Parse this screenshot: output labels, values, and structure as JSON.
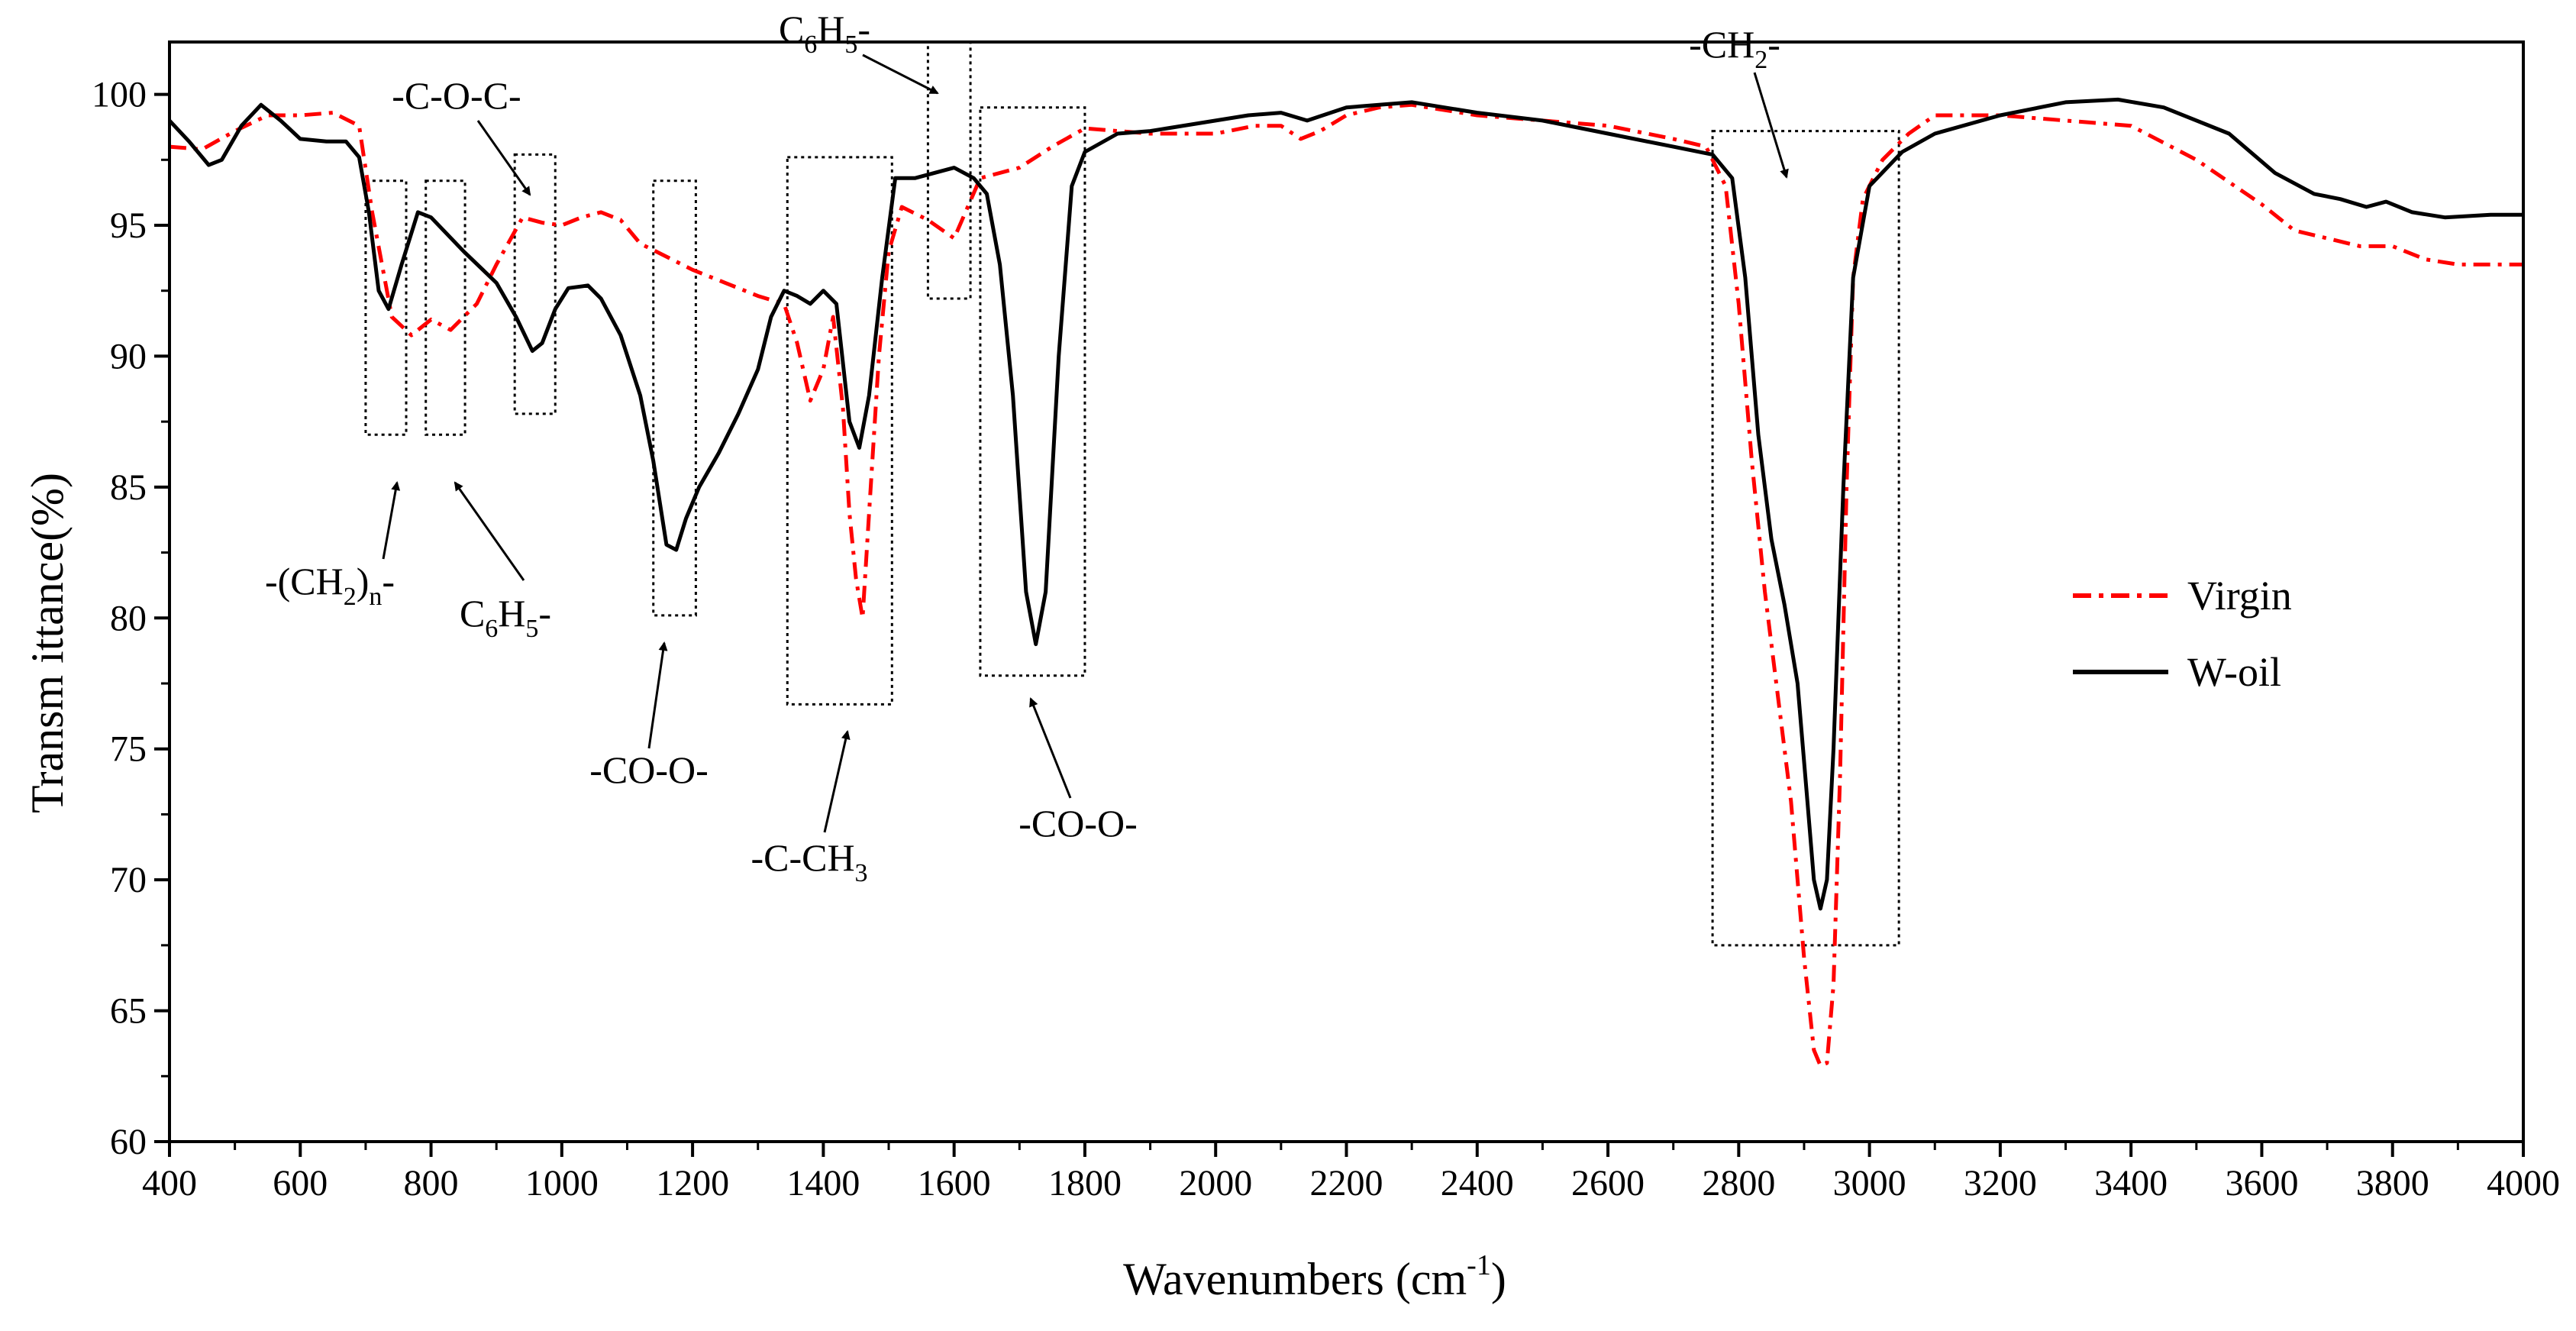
{
  "chart_data": {
    "type": "line",
    "title": "",
    "xlabel": "Wavenumbers (cm",
    "xlabel_sup": "-1",
    "xlabel_end": ")",
    "ylabel": "Transm ittance(%)",
    "xlim": [
      400,
      4000
    ],
    "ylim": [
      60,
      102
    ],
    "xticks": [
      400,
      600,
      800,
      1000,
      1200,
      1400,
      1600,
      1800,
      2000,
      2200,
      2400,
      2600,
      2800,
      3000,
      3200,
      3400,
      3600,
      3800,
      4000
    ],
    "yticks": [
      60,
      65,
      70,
      75,
      80,
      85,
      90,
      95,
      100
    ],
    "grid": false,
    "legend_position": "center-right",
    "series": [
      {
        "name": "Virgin",
        "color": "#ff0000",
        "style": "dash-dot",
        "points": [
          [
            400,
            98.0
          ],
          [
            450,
            97.9
          ],
          [
            500,
            98.6
          ],
          [
            550,
            99.2
          ],
          [
            600,
            99.2
          ],
          [
            650,
            99.3
          ],
          [
            690,
            98.8
          ],
          [
            710,
            95.5
          ],
          [
            740,
            91.5
          ],
          [
            770,
            90.8
          ],
          [
            800,
            91.4
          ],
          [
            830,
            91.0
          ],
          [
            870,
            92.0
          ],
          [
            900,
            93.5
          ],
          [
            940,
            95.3
          ],
          [
            970,
            95.1
          ],
          [
            1000,
            95.0
          ],
          [
            1030,
            95.3
          ],
          [
            1060,
            95.5
          ],
          [
            1090,
            95.2
          ],
          [
            1120,
            94.3
          ],
          [
            1160,
            93.8
          ],
          [
            1200,
            93.3
          ],
          [
            1250,
            92.8
          ],
          [
            1300,
            92.3
          ],
          [
            1340,
            92.0
          ],
          [
            1360,
            90.5
          ],
          [
            1380,
            88.3
          ],
          [
            1400,
            89.5
          ],
          [
            1415,
            91.5
          ],
          [
            1430,
            88.0
          ],
          [
            1440,
            84.0
          ],
          [
            1450,
            81.5
          ],
          [
            1460,
            80.0
          ],
          [
            1470,
            84.0
          ],
          [
            1485,
            90.0
          ],
          [
            1500,
            94.0
          ],
          [
            1520,
            95.7
          ],
          [
            1560,
            95.2
          ],
          [
            1600,
            94.5
          ],
          [
            1640,
            96.8
          ],
          [
            1700,
            97.2
          ],
          [
            1750,
            98.0
          ],
          [
            1800,
            98.7
          ],
          [
            1900,
            98.5
          ],
          [
            2000,
            98.5
          ],
          [
            2060,
            98.8
          ],
          [
            2100,
            98.8
          ],
          [
            2130,
            98.3
          ],
          [
            2160,
            98.6
          ],
          [
            2200,
            99.2
          ],
          [
            2250,
            99.5
          ],
          [
            2300,
            99.6
          ],
          [
            2400,
            99.2
          ],
          [
            2500,
            99.0
          ],
          [
            2600,
            98.8
          ],
          [
            2700,
            98.3
          ],
          [
            2750,
            98.0
          ],
          [
            2780,
            96.5
          ],
          [
            2800,
            92.0
          ],
          [
            2820,
            86.0
          ],
          [
            2840,
            81.0
          ],
          [
            2860,
            77.0
          ],
          [
            2880,
            73.0
          ],
          [
            2900,
            67.0
          ],
          [
            2915,
            63.5
          ],
          [
            2925,
            62.9
          ],
          [
            2935,
            63.0
          ],
          [
            2945,
            66.0
          ],
          [
            2955,
            74.0
          ],
          [
            2965,
            85.0
          ],
          [
            2975,
            93.0
          ],
          [
            2990,
            96.0
          ],
          [
            3020,
            97.5
          ],
          [
            3060,
            98.5
          ],
          [
            3100,
            99.2
          ],
          [
            3200,
            99.2
          ],
          [
            3300,
            99.0
          ],
          [
            3400,
            98.8
          ],
          [
            3500,
            97.5
          ],
          [
            3600,
            95.8
          ],
          [
            3650,
            94.8
          ],
          [
            3700,
            94.5
          ],
          [
            3750,
            94.2
          ],
          [
            3800,
            94.2
          ],
          [
            3850,
            93.7
          ],
          [
            3900,
            93.5
          ],
          [
            4000,
            93.5
          ]
        ]
      },
      {
        "name": "W-oil",
        "color": "#000000",
        "style": "solid",
        "points": [
          [
            400,
            99.0
          ],
          [
            430,
            98.2
          ],
          [
            460,
            97.3
          ],
          [
            480,
            97.5
          ],
          [
            510,
            98.8
          ],
          [
            540,
            99.6
          ],
          [
            570,
            99.0
          ],
          [
            600,
            98.3
          ],
          [
            640,
            98.2
          ],
          [
            670,
            98.2
          ],
          [
            690,
            97.6
          ],
          [
            705,
            95.5
          ],
          [
            720,
            92.5
          ],
          [
            735,
            91.8
          ],
          [
            755,
            93.5
          ],
          [
            780,
            95.5
          ],
          [
            800,
            95.3
          ],
          [
            850,
            94.0
          ],
          [
            900,
            92.8
          ],
          [
            930,
            91.5
          ],
          [
            955,
            90.2
          ],
          [
            970,
            90.5
          ],
          [
            990,
            91.8
          ],
          [
            1010,
            92.6
          ],
          [
            1040,
            92.7
          ],
          [
            1060,
            92.2
          ],
          [
            1090,
            90.8
          ],
          [
            1120,
            88.5
          ],
          [
            1140,
            86.0
          ],
          [
            1160,
            82.8
          ],
          [
            1175,
            82.6
          ],
          [
            1190,
            83.8
          ],
          [
            1210,
            85.0
          ],
          [
            1240,
            86.3
          ],
          [
            1270,
            87.8
          ],
          [
            1300,
            89.5
          ],
          [
            1320,
            91.5
          ],
          [
            1340,
            92.5
          ],
          [
            1360,
            92.3
          ],
          [
            1380,
            92.0
          ],
          [
            1400,
            92.5
          ],
          [
            1420,
            92.0
          ],
          [
            1440,
            87.5
          ],
          [
            1455,
            86.5
          ],
          [
            1470,
            88.5
          ],
          [
            1490,
            93.0
          ],
          [
            1510,
            96.8
          ],
          [
            1540,
            96.8
          ],
          [
            1570,
            97.0
          ],
          [
            1600,
            97.2
          ],
          [
            1630,
            96.8
          ],
          [
            1650,
            96.2
          ],
          [
            1670,
            93.5
          ],
          [
            1690,
            88.5
          ],
          [
            1710,
            81.0
          ],
          [
            1725,
            79.0
          ],
          [
            1740,
            81.0
          ],
          [
            1760,
            90.0
          ],
          [
            1780,
            96.5
          ],
          [
            1800,
            97.8
          ],
          [
            1850,
            98.5
          ],
          [
            1900,
            98.6
          ],
          [
            2000,
            99.0
          ],
          [
            2050,
            99.2
          ],
          [
            2100,
            99.3
          ],
          [
            2140,
            99.0
          ],
          [
            2200,
            99.5
          ],
          [
            2250,
            99.6
          ],
          [
            2300,
            99.7
          ],
          [
            2400,
            99.3
          ],
          [
            2500,
            99.0
          ],
          [
            2600,
            98.5
          ],
          [
            2700,
            98.0
          ],
          [
            2760,
            97.7
          ],
          [
            2790,
            96.8
          ],
          [
            2810,
            93.0
          ],
          [
            2830,
            87.0
          ],
          [
            2850,
            83.0
          ],
          [
            2870,
            80.5
          ],
          [
            2890,
            77.5
          ],
          [
            2905,
            73.0
          ],
          [
            2915,
            70.0
          ],
          [
            2925,
            68.9
          ],
          [
            2935,
            70.0
          ],
          [
            2945,
            75.0
          ],
          [
            2960,
            85.0
          ],
          [
            2975,
            93.0
          ],
          [
            3000,
            96.5
          ],
          [
            3050,
            97.8
          ],
          [
            3100,
            98.5
          ],
          [
            3200,
            99.2
          ],
          [
            3300,
            99.7
          ],
          [
            3380,
            99.8
          ],
          [
            3450,
            99.5
          ],
          [
            3550,
            98.5
          ],
          [
            3620,
            97.0
          ],
          [
            3680,
            96.2
          ],
          [
            3720,
            96.0
          ],
          [
            3760,
            95.7
          ],
          [
            3790,
            95.9
          ],
          [
            3830,
            95.5
          ],
          [
            3880,
            95.3
          ],
          [
            3950,
            95.4
          ],
          [
            4000,
            95.4
          ]
        ]
      }
    ],
    "annotations": [
      {
        "main": "-C-O-C-",
        "sub": "",
        "rest": ""
      },
      {
        "main": "C",
        "sub": "6",
        "mid": "H",
        "sub2": "5",
        "rest": "-"
      },
      {
        "main": "-CH",
        "sub": "2",
        "rest": "-"
      },
      {
        "main": "-(CH",
        "sub": "2",
        "rest": ")",
        "sub2": "n",
        "tail": "-"
      },
      {
        "main": "C",
        "sub": "6",
        "mid": "H",
        "sub2": "5",
        "rest": "-"
      },
      {
        "main": "-CO-O-",
        "sub": "",
        "rest": ""
      },
      {
        "main": "-C-CH",
        "sub": "3",
        "rest": ""
      },
      {
        "main": "-CO-O-",
        "sub": "",
        "rest": ""
      }
    ],
    "annotation_boxes": [
      {
        "x0": 700,
        "x1": 762,
        "y0": 87.0,
        "y1": 96.7
      },
      {
        "x0": 792,
        "x1": 852,
        "y0": 87.0,
        "y1": 96.7
      },
      {
        "x0": 928,
        "x1": 990,
        "y0": 87.8,
        "y1": 97.7
      },
      {
        "x0": 1140,
        "x1": 1205,
        "y0": 80.1,
        "y1": 96.7
      },
      {
        "x0": 1345,
        "x1": 1505,
        "y0": 76.7,
        "y1": 97.6
      },
      {
        "x0": 1560,
        "x1": 1625,
        "y0": 92.2,
        "y1": 102.0
      },
      {
        "x0": 1640,
        "x1": 1800,
        "y0": 77.8,
        "y1": 99.5
      },
      {
        "x0": 2760,
        "x1": 3045,
        "y0": 67.5,
        "y1": 98.6
      }
    ]
  }
}
